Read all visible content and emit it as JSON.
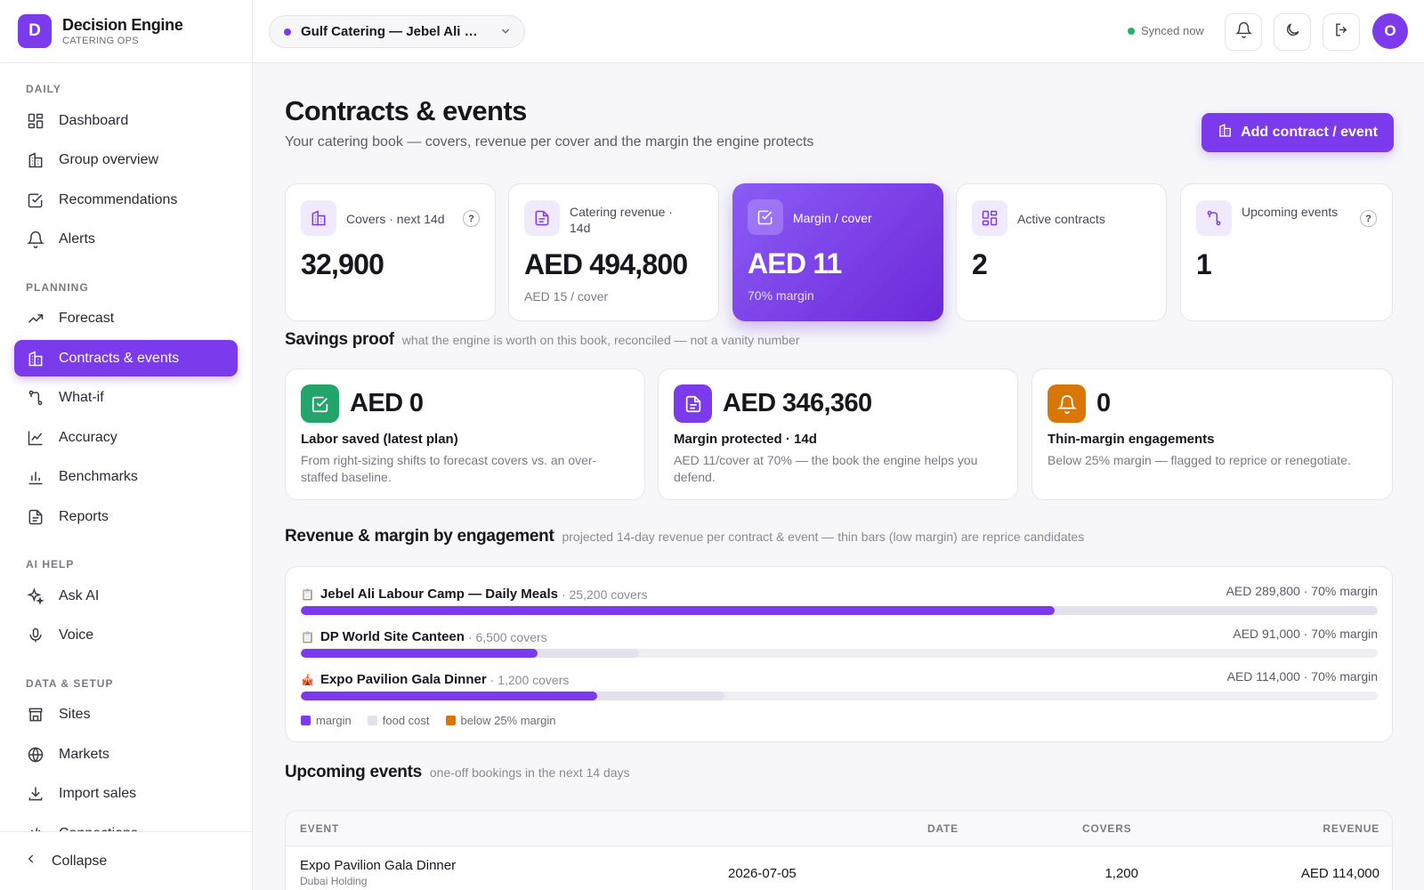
{
  "brand": {
    "logo_letter": "D",
    "title": "Decision Engine",
    "subtitle": "CATERING OPS"
  },
  "sidebar": {
    "sections": [
      {
        "label": "DAILY"
      },
      {
        "label": "PLANNING"
      },
      {
        "label": "AI HELP"
      },
      {
        "label": "DATA & SETUP"
      }
    ],
    "items": [
      {
        "label": "Dashboard",
        "icon": "dashboard-icon"
      },
      {
        "label": "Group overview",
        "icon": "building-icon"
      },
      {
        "label": "Recommendations",
        "icon": "check-square-icon"
      },
      {
        "label": "Alerts",
        "icon": "bell-icon"
      },
      {
        "label": "Forecast",
        "icon": "trend-up-icon"
      },
      {
        "label": "Contracts & events",
        "icon": "building-icon",
        "active": true
      },
      {
        "label": "What-if",
        "icon": "branch-icon"
      },
      {
        "label": "Accuracy",
        "icon": "line-chart-icon"
      },
      {
        "label": "Benchmarks",
        "icon": "bar-chart-icon"
      },
      {
        "label": "Reports",
        "icon": "document-icon"
      },
      {
        "label": "Ask AI",
        "icon": "sparkle-icon"
      },
      {
        "label": "Voice",
        "icon": "mic-icon"
      },
      {
        "label": "Sites",
        "icon": "store-icon"
      },
      {
        "label": "Markets",
        "icon": "globe-icon"
      },
      {
        "label": "Import sales",
        "icon": "download-icon"
      },
      {
        "label": "Connections",
        "icon": "code-icon"
      }
    ],
    "collapse_label": "Collapse"
  },
  "topbar": {
    "site_name": "Gulf Catering — Jebel Ali Camp",
    "sync_status": "Synced now",
    "avatar_letter": "O"
  },
  "page": {
    "title": "Contracts & events",
    "subtitle": "Your catering book — covers, revenue per cover and the margin the engine protects",
    "add_button": "Add contract / event"
  },
  "kpis": [
    {
      "label": "Covers · next 14d",
      "value": "32,900",
      "sub": "",
      "help": "?"
    },
    {
      "label": "Catering revenue · 14d",
      "value": "AED 494,800",
      "sub": "AED 15 / cover"
    },
    {
      "label": "Margin / cover",
      "value": "AED 11",
      "sub": "70% margin"
    },
    {
      "label": "Active contracts",
      "value": "2",
      "sub": ""
    },
    {
      "label": "Upcoming events",
      "value": "1",
      "sub": "",
      "help": "?"
    }
  ],
  "savings": {
    "title": "Savings proof",
    "note": "what the engine is worth on this book, reconciled — not a vanity number",
    "cards": [
      {
        "value": "AED 0",
        "title": "Labor saved (latest plan)",
        "desc": "From right-sizing shifts to forecast covers vs. an over-staffed baseline.",
        "color": "#22a46b",
        "icon": "check-square-icon"
      },
      {
        "value": "AED 346,360",
        "title": "Margin protected · 14d",
        "desc": "AED 11/cover at 70% — the book the engine helps you defend.",
        "color": "#7c3aed",
        "icon": "document-icon"
      },
      {
        "value": "0",
        "title": "Thin-margin engagements",
        "desc": "Below 25% margin — flagged to reprice or renegotiate.",
        "color": "#d97706",
        "icon": "bell-icon"
      }
    ]
  },
  "revenue": {
    "title": "Revenue & margin by engagement",
    "note": "projected 14-day revenue per contract & event — thin bars (low margin) are reprice candidates",
    "chart_data": {
      "type": "bar",
      "categories": [
        "Jebel Ali Labour Camp — Daily Meals",
        "DP World Site Canteen",
        "Expo Pavilion Gala Dinner"
      ],
      "series": [
        {
          "name": "margin",
          "values": [
            202860,
            63700,
            79800
          ]
        },
        {
          "name": "food cost",
          "values": [
            86940,
            27300,
            34200
          ]
        }
      ],
      "revenue": [
        289800,
        91000,
        114000
      ],
      "xlim": [
        0,
        289800
      ]
    },
    "rows": [
      {
        "emoji": "📋",
        "name": "Jebel Ali Labour Camp — Daily Meals",
        "covers": "· 25,200 covers",
        "right": "AED 289,800 · 70% margin"
      },
      {
        "emoji": "📋",
        "name": "DP World Site Canteen",
        "covers": "· 6,500 covers",
        "right": "AED 91,000 · 70% margin"
      },
      {
        "emoji": "🎪",
        "name": "Expo Pavilion Gala Dinner",
        "covers": "· 1,200 covers",
        "right": "AED 114,000 · 70% margin"
      }
    ],
    "legend": [
      {
        "label": "margin",
        "color": "#7c3aed"
      },
      {
        "label": "food cost",
        "color": "#e2e2ec"
      },
      {
        "label": "below 25% margin",
        "color": "#d97706"
      }
    ]
  },
  "events": {
    "title": "Upcoming events",
    "note": "one-off bookings in the next 14 days",
    "columns": [
      "EVENT",
      "DATE",
      "COVERS",
      "REVENUE"
    ],
    "rows": [
      {
        "name": "Expo Pavilion Gala Dinner",
        "client": "Dubai Holding",
        "date": "2026-07-05",
        "covers": "1,200",
        "revenue": "AED 114,000"
      }
    ]
  }
}
